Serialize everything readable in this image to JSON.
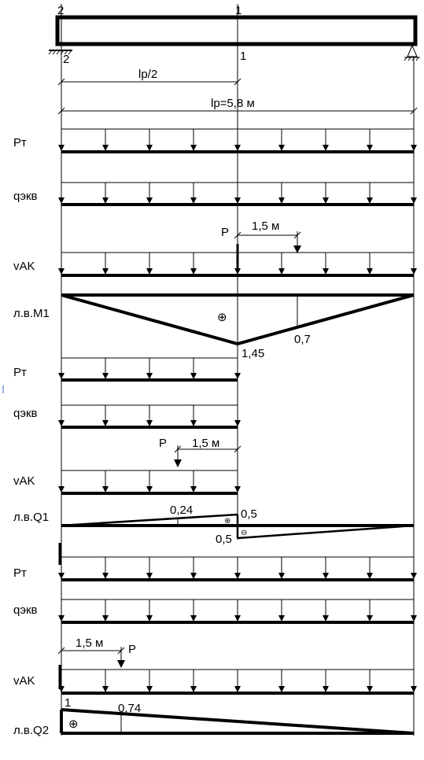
{
  "beam": {
    "section_top_left": "2",
    "section_top_mid": "1",
    "section_bottom_left": "2",
    "section_bottom_mid": "1"
  },
  "dims": {
    "half_span": "lp/2",
    "span": "lp=5,8 м",
    "p_offset": "1,5 м",
    "p_label": "P"
  },
  "loads": {
    "pt": "Pт",
    "qekv": "qэкв",
    "vak": "vAK"
  },
  "lines": {
    "m1": "л.в.M1",
    "q1": "л.в.Q1",
    "q2": "л.в.Q2"
  },
  "values": {
    "m1_max": "1,45",
    "m1_p": "0,7",
    "q1_p": "0,24",
    "q1_top": "0,5",
    "q1_bottom": "0,5",
    "q2_left": "1",
    "q2_p": "0,74",
    "plus": "⊕",
    "minus": "⊖"
  }
}
